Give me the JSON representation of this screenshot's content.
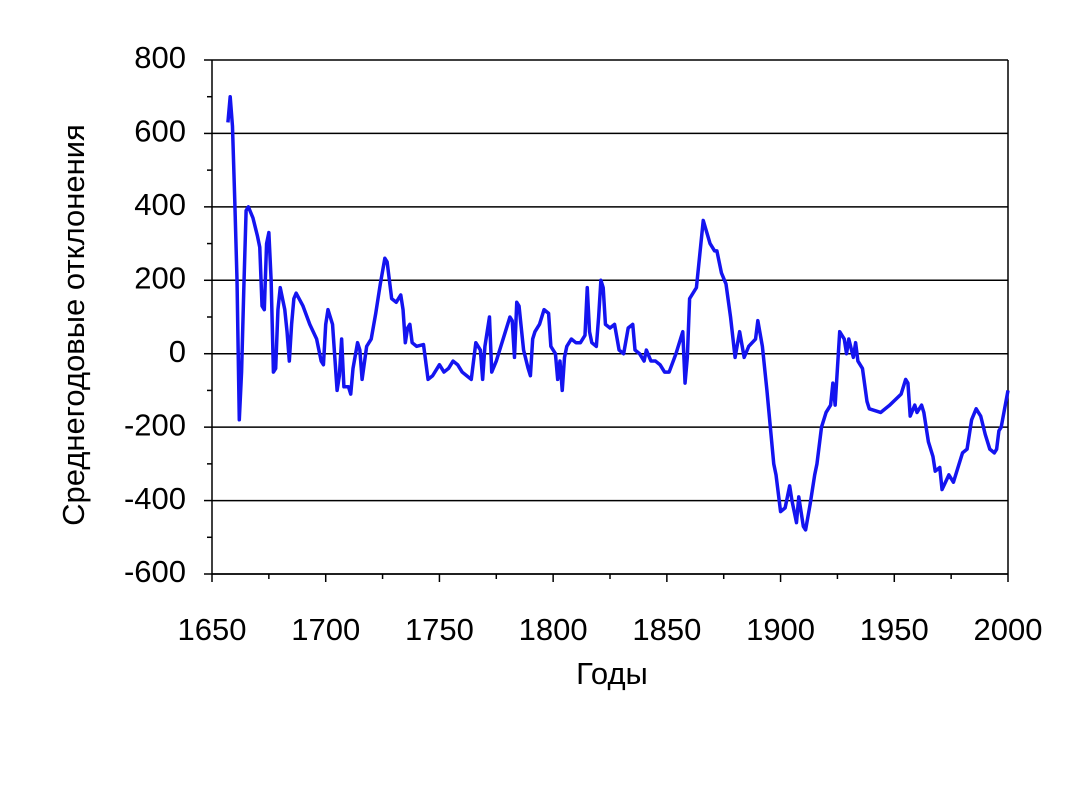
{
  "chart_data": {
    "type": "line",
    "x_label": "Годы",
    "y_label": "Среднегодовые отклонения",
    "xlim": [
      1650,
      2000
    ],
    "xticks": [
      1650,
      1700,
      1750,
      1800,
      1850,
      1900,
      1950,
      2000
    ],
    "ylim": [
      -600,
      800
    ],
    "yticks": [
      -600,
      -400,
      -200,
      0,
      200,
      400,
      600,
      800
    ],
    "grid": true,
    "series": [
      {
        "color": "#1414f0",
        "x": [
          1657,
          1658,
          1659,
          1660,
          1661,
          1662,
          1663,
          1664,
          1665,
          1666,
          1668,
          1670,
          1671,
          1672,
          1673,
          1674,
          1675,
          1676,
          1677,
          1678,
          1679,
          1680,
          1682,
          1683,
          1684,
          1685,
          1686,
          1687,
          1690,
          1693,
          1696,
          1698,
          1699,
          1700,
          1701,
          1703,
          1705,
          1706,
          1707,
          1708,
          1710,
          1711,
          1712,
          1714,
          1715,
          1716,
          1718,
          1720,
          1722,
          1724,
          1726,
          1727,
          1729,
          1731,
          1733,
          1734,
          1735,
          1736,
          1737,
          1738,
          1740,
          1743,
          1745,
          1747,
          1750,
          1752,
          1754,
          1756,
          1758,
          1760,
          1762,
          1764,
          1765,
          1766,
          1768,
          1769,
          1770,
          1771,
          1772,
          1773,
          1775,
          1777,
          1779,
          1781,
          1782,
          1783,
          1784,
          1785,
          1787,
          1789,
          1790,
          1791,
          1792,
          1794,
          1796,
          1798,
          1799,
          1801,
          1802,
          1803,
          1804,
          1805,
          1806,
          1808,
          1810,
          1812,
          1814,
          1815,
          1816,
          1817,
          1819,
          1820,
          1821,
          1822,
          1823,
          1825,
          1827,
          1829,
          1831,
          1833,
          1835,
          1836,
          1838,
          1840,
          1841,
          1843,
          1845,
          1847,
          1849,
          1851,
          1854,
          1856,
          1857,
          1858,
          1859,
          1860,
          1863,
          1866,
          1869,
          1871,
          1872,
          1874,
          1876,
          1878,
          1880,
          1882,
          1884,
          1886,
          1889,
          1890,
          1892,
          1894,
          1897,
          1898,
          1900,
          1902,
          1904,
          1905,
          1907,
          1908,
          1910,
          1911,
          1913,
          1915,
          1916,
          1918,
          1920,
          1922,
          1923,
          1924,
          1926,
          1928,
          1929,
          1930,
          1932,
          1933,
          1934,
          1936,
          1938,
          1939,
          1944,
          1948,
          1953,
          1955,
          1956,
          1957,
          1959,
          1960,
          1962,
          1963,
          1965,
          1967,
          1968,
          1970,
          1971,
          1974,
          1976,
          1977,
          1980,
          1982,
          1984,
          1986,
          1988,
          1990,
          1992,
          1994,
          1995,
          1996,
          1997,
          2000
        ],
        "values": [
          630,
          700,
          620,
          420,
          200,
          -180,
          -50,
          180,
          390,
          400,
          370,
          320,
          290,
          130,
          120,
          300,
          330,
          200,
          -50,
          -40,
          120,
          180,
          120,
          60,
          -20,
          80,
          150,
          165,
          130,
          80,
          40,
          -20,
          -30,
          80,
          120,
          80,
          -100,
          -60,
          40,
          -90,
          -90,
          -110,
          -40,
          30,
          10,
          -70,
          20,
          40,
          110,
          190,
          260,
          250,
          150,
          140,
          160,
          120,
          30,
          70,
          80,
          30,
          20,
          25,
          -70,
          -60,
          -30,
          -50,
          -40,
          -20,
          -30,
          -50,
          -60,
          -70,
          -20,
          30,
          10,
          -70,
          20,
          60,
          100,
          -50,
          -20,
          20,
          60,
          100,
          90,
          -10,
          140,
          130,
          10,
          -40,
          -60,
          40,
          60,
          80,
          120,
          110,
          20,
          0,
          -70,
          -20,
          -100,
          -10,
          20,
          40,
          30,
          30,
          50,
          180,
          60,
          30,
          20,
          100,
          200,
          180,
          80,
          70,
          80,
          10,
          0,
          70,
          80,
          10,
          0,
          -20,
          10,
          -20,
          -20,
          -30,
          -50,
          -50,
          0,
          40,
          60,
          -80,
          -10,
          150,
          180,
          363,
          300,
          280,
          280,
          220,
          190,
          100,
          -10,
          60,
          -10,
          20,
          40,
          90,
          20,
          -100,
          -300,
          -330,
          -430,
          -420,
          -360,
          -400,
          -460,
          -390,
          -470,
          -480,
          -410,
          -330,
          -300,
          -200,
          -160,
          -140,
          -80,
          -140,
          60,
          40,
          0,
          40,
          -10,
          30,
          -20,
          -40,
          -130,
          -150,
          -160,
          -140,
          -110,
          -70,
          -80,
          -170,
          -140,
          -160,
          -140,
          -160,
          -240,
          -280,
          -320,
          -310,
          -370,
          -330,
          -350,
          -330,
          -270,
          -260,
          -180,
          -150,
          -170,
          -220,
          -260,
          -270,
          -260,
          -210,
          -200,
          -100
        ]
      }
    ]
  }
}
